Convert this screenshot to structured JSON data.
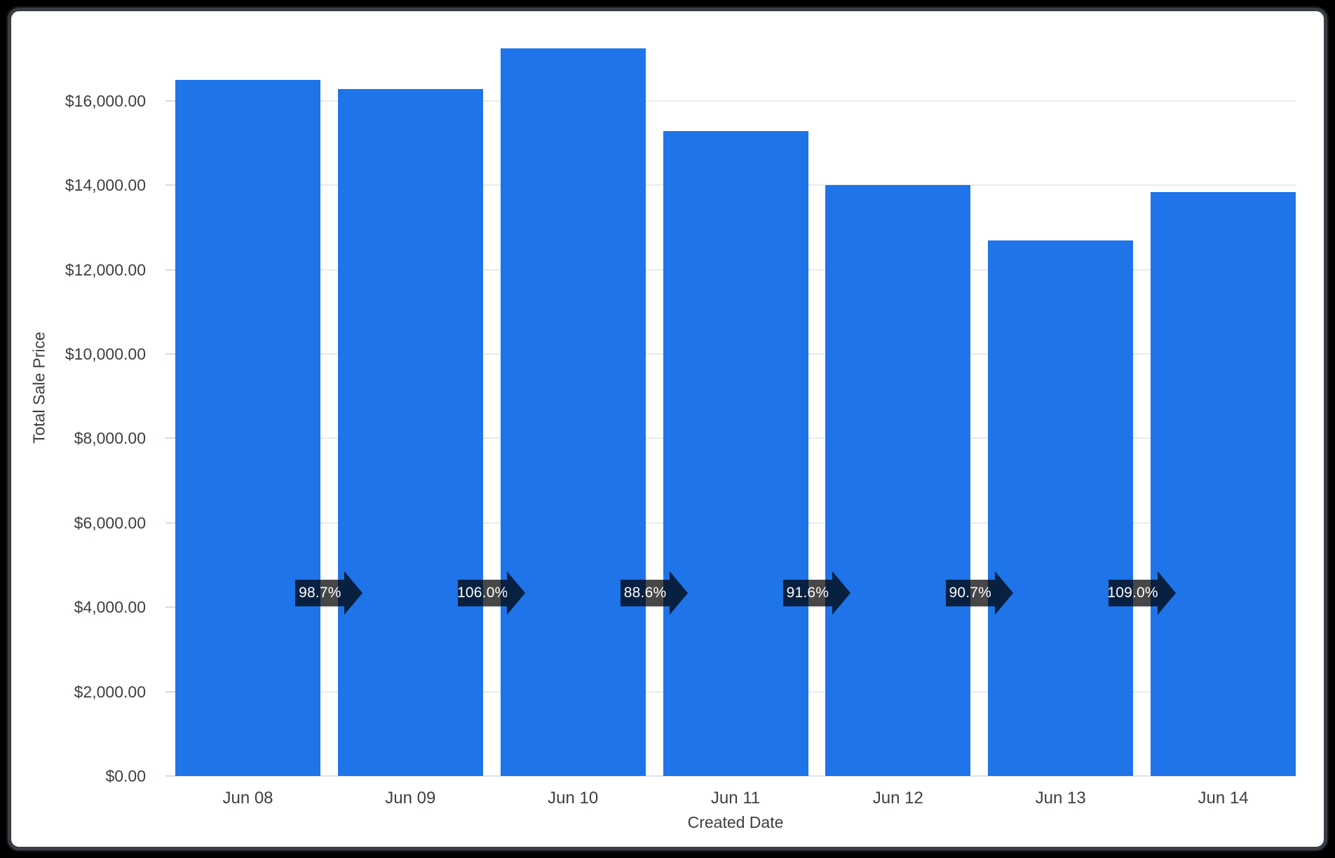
{
  "window": {
    "background": "#000000",
    "card_background": "#ffffff",
    "card_border_color": "#383e43"
  },
  "chart_data": {
    "type": "bar",
    "title": "",
    "xlabel": "Created Date",
    "ylabel": "Total Sale Price",
    "categories": [
      "Jun 08",
      "Jun 09",
      "Jun 10",
      "Jun 11",
      "Jun 12",
      "Jun 13",
      "Jun 14"
    ],
    "series": [
      {
        "name": "Total Sale Price",
        "values": [
          16490,
          16280,
          17250,
          15290,
          14000,
          12700,
          13840
        ]
      }
    ],
    "bar_color": "#1e74e8",
    "ylim": [
      0,
      18390
    ],
    "grid": true,
    "legend": "none",
    "y_ticks": [
      {
        "value": 0,
        "label": "$0.00"
      },
      {
        "value": 2000,
        "label": "$2,000.00"
      },
      {
        "value": 4000,
        "label": "$4,000.00"
      },
      {
        "value": 6000,
        "label": "$6,000.00"
      },
      {
        "value": 8000,
        "label": "$8,000.00"
      },
      {
        "value": 10000,
        "label": "$10,000.00"
      },
      {
        "value": 12000,
        "label": "$12,000.00"
      },
      {
        "value": 14000,
        "label": "$14,000.00"
      },
      {
        "value": 16000,
        "label": "$16,000.00"
      }
    ],
    "growth_badges": {
      "shape": "right-arrow",
      "fill": "rgba(0,0,0,0.72)",
      "text_color": "#ffffff",
      "labels": [
        "98.7%",
        "106.0%",
        "88.6%",
        "91.6%",
        "90.7%",
        "109.0%"
      ]
    }
  }
}
